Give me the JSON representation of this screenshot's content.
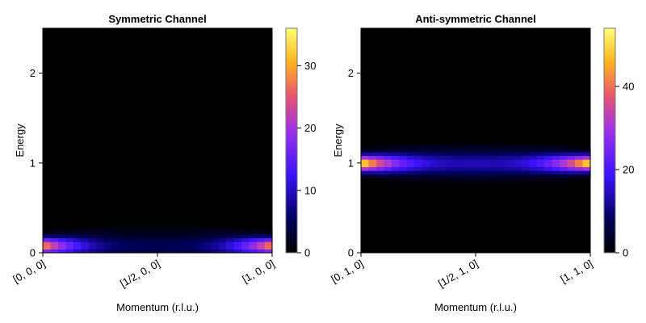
{
  "chart_data": [
    {
      "type": "heatmap",
      "title": "Symmetric Channel",
      "xlabel": "Momentum (r.l.u.)",
      "ylabel": "Energy",
      "x_ticks": [
        "[0, 0, 0]",
        "[1/2, 0, 0]",
        "[1, 0, 0]"
      ],
      "x_tick_positions": [
        0,
        0.5,
        1
      ],
      "y_ticks": [
        "0",
        "1",
        "2"
      ],
      "y_tick_values": [
        0,
        1,
        2
      ],
      "ylim": [
        0,
        2.5
      ],
      "xlim": [
        0,
        1
      ],
      "colormap": "gnuplot2",
      "colorbar": {
        "min": 0,
        "max": 36,
        "ticks": [
          "0",
          "10",
          "20",
          "30"
        ],
        "tick_values": [
          0,
          10,
          20,
          30
        ]
      },
      "feature": {
        "kind": "dispersion",
        "shape": "dome",
        "energy_center": 0.08,
        "energy_peak": 0.12,
        "edge_intensity": 30,
        "mid_intensity": 5
      }
    },
    {
      "type": "heatmap",
      "title": "Anti-symmetric Channel",
      "xlabel": "Momentum (r.l.u.)",
      "ylabel": "Energy",
      "x_ticks": [
        "[0, 1, 0]",
        "[1/2, 1, 0]",
        "[1, 1, 0]"
      ],
      "x_tick_positions": [
        0,
        0.5,
        1
      ],
      "y_ticks": [
        "0",
        "1",
        "2"
      ],
      "y_tick_values": [
        0,
        1,
        2
      ],
      "ylim": [
        0,
        2.5
      ],
      "xlim": [
        0,
        1
      ],
      "colormap": "gnuplot2",
      "colorbar": {
        "min": 0,
        "max": 54,
        "ticks": [
          "0",
          "20",
          "40"
        ],
        "tick_values": [
          0,
          20,
          40
        ]
      },
      "feature": {
        "kind": "flat-band",
        "energy_center": 1.0,
        "edge_intensity": 54,
        "mid_intensity": 14
      }
    }
  ]
}
